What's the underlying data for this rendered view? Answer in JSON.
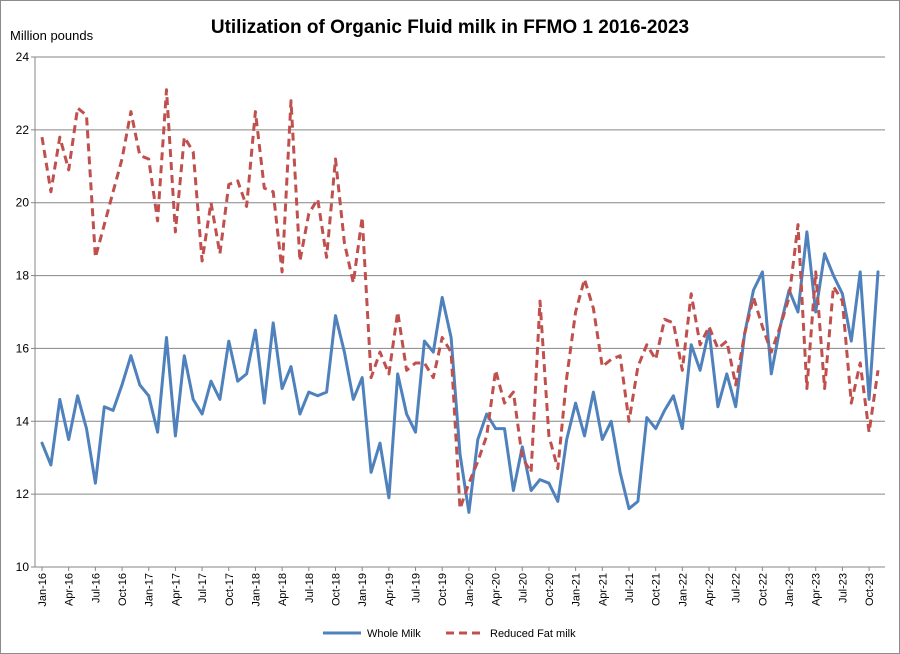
{
  "chart_data": {
    "type": "line",
    "title": "Utilization of Organic Fluid milk in FFMO 1 2016-2023",
    "ylabel": "Million pounds",
    "xlabel": "",
    "ylim": [
      10,
      24
    ],
    "yticks": [
      10,
      12,
      14,
      16,
      18,
      20,
      22,
      24
    ],
    "grid": true,
    "legend_position": "bottom",
    "x_tick_labels": [
      "Jan-16",
      "Apr-16",
      "Jul-16",
      "Oct-16",
      "Jan-17",
      "Apr-17",
      "Jul-17",
      "Oct-17",
      "Jan-18",
      "Apr-18",
      "Jul-18",
      "Oct-18",
      "Jan-19",
      "Apr-19",
      "Jul-19",
      "Oct-19",
      "Jan-20",
      "Apr-20",
      "Jul-20",
      "Oct-20",
      "Jan-21",
      "Apr-21",
      "Jul-21",
      "Oct-21",
      "Jan-22",
      "Apr-22",
      "Jul-22",
      "Oct-22",
      "Jan-23",
      "Apr-23",
      "Jul-23",
      "Oct-23"
    ],
    "series": [
      {
        "name": "Whole Milk",
        "color": "#4f81bd",
        "style": "solid",
        "values": [
          13.4,
          12.8,
          14.6,
          13.5,
          14.7,
          13.8,
          12.3,
          14.4,
          14.3,
          15.0,
          15.8,
          15.0,
          14.7,
          13.7,
          16.3,
          13.6,
          15.8,
          14.6,
          14.2,
          15.1,
          14.6,
          16.2,
          15.1,
          15.3,
          16.5,
          14.5,
          16.7,
          14.9,
          15.5,
          14.2,
          14.8,
          14.7,
          14.8,
          16.9,
          15.9,
          14.6,
          15.2,
          12.6,
          13.4,
          11.9,
          15.3,
          14.2,
          13.7,
          16.2,
          15.9,
          17.4,
          16.3,
          13.1,
          11.5,
          13.5,
          14.2,
          13.8,
          13.8,
          12.1,
          13.3,
          12.1,
          12.4,
          12.3,
          11.8,
          13.5,
          14.5,
          13.6,
          14.8,
          13.5,
          14.0,
          12.6,
          11.6,
          11.8,
          14.1,
          13.8,
          14.3,
          14.7,
          13.8,
          16.1,
          15.4,
          16.5,
          14.4,
          15.3,
          14.4,
          16.4,
          17.6,
          18.1,
          15.3,
          16.6,
          17.6,
          17.0,
          19.2,
          17.0,
          18.6,
          18.0,
          17.5,
          16.2,
          18.1,
          14.6,
          18.1
        ]
      },
      {
        "name": "Reduced Fat milk",
        "color": "#c0504d",
        "style": "dashed",
        "values": [
          21.8,
          20.3,
          21.8,
          20.9,
          22.6,
          22.4,
          18.5,
          19.4,
          20.3,
          21.2,
          22.5,
          21.3,
          21.2,
          19.5,
          23.1,
          19.2,
          21.8,
          21.4,
          18.4,
          20.0,
          18.6,
          20.5,
          20.6,
          19.9,
          22.5,
          20.4,
          20.3,
          18.1,
          22.8,
          18.4,
          19.7,
          20.1,
          18.5,
          21.2,
          18.9,
          17.8,
          19.6,
          15.2,
          15.9,
          15.3,
          17.0,
          15.4,
          15.6,
          15.6,
          15.2,
          16.3,
          15.9,
          11.6,
          12.3,
          12.9,
          13.6,
          15.4,
          14.5,
          14.8,
          13.0,
          12.6,
          17.3,
          13.6,
          12.7,
          15.2,
          17.0,
          17.9,
          17.1,
          15.5,
          15.7,
          15.8,
          14.0,
          15.5,
          16.1,
          15.7,
          16.8,
          16.7,
          15.4,
          17.5,
          16.1,
          16.6,
          16.0,
          16.2,
          15.0,
          16.4,
          17.4,
          16.6,
          15.9,
          16.6,
          17.4,
          19.4,
          14.9,
          18.1,
          14.9,
          17.7,
          17.3,
          14.5,
          15.6,
          13.7,
          15.4
        ]
      }
    ]
  }
}
